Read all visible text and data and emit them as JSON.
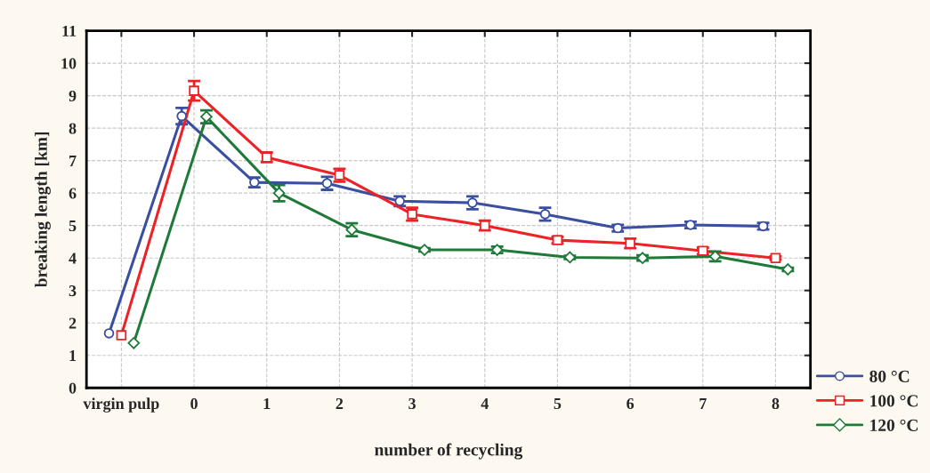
{
  "chart_data": {
    "type": "line",
    "xlabel": "number of recycling",
    "ylabel": "breaking length [km]",
    "categories": [
      "virgin pulp",
      "0",
      "1",
      "2",
      "3",
      "4",
      "5",
      "6",
      "7",
      "8"
    ],
    "ylim": [
      0,
      11
    ],
    "yticks": [
      0,
      1,
      2,
      3,
      4,
      5,
      6,
      7,
      8,
      9,
      10,
      11
    ],
    "grid": true,
    "legend": "bottom right",
    "series": [
      {
        "name": "80 °C",
        "color": "#3a4fa0",
        "marker": "circle",
        "values": [
          1.68,
          8.37,
          6.33,
          6.3,
          5.75,
          5.7,
          5.35,
          4.92,
          5.02,
          4.98
        ],
        "errors": [
          null,
          0.25,
          0.15,
          0.2,
          0.15,
          0.2,
          0.2,
          0.1,
          0.1,
          0.1
        ]
      },
      {
        "name": "100 °C",
        "color": "#ec2227",
        "marker": "square",
        "values": [
          1.62,
          9.15,
          7.1,
          6.55,
          5.35,
          5.0,
          4.55,
          4.45,
          4.22,
          4.0
        ],
        "errors": [
          null,
          0.3,
          0.15,
          0.2,
          0.2,
          0.15,
          0.1,
          0.15,
          0.1,
          0.05
        ]
      },
      {
        "name": "120 °C",
        "color": "#1f7a3a",
        "marker": "diamond",
        "values": [
          1.38,
          8.35,
          6.0,
          4.87,
          4.25,
          4.25,
          4.02,
          4.0,
          4.05,
          3.65
        ],
        "errors": [
          null,
          0.2,
          0.25,
          0.2,
          0.05,
          0.1,
          0.05,
          0.08,
          0.15,
          0.05
        ]
      }
    ]
  }
}
